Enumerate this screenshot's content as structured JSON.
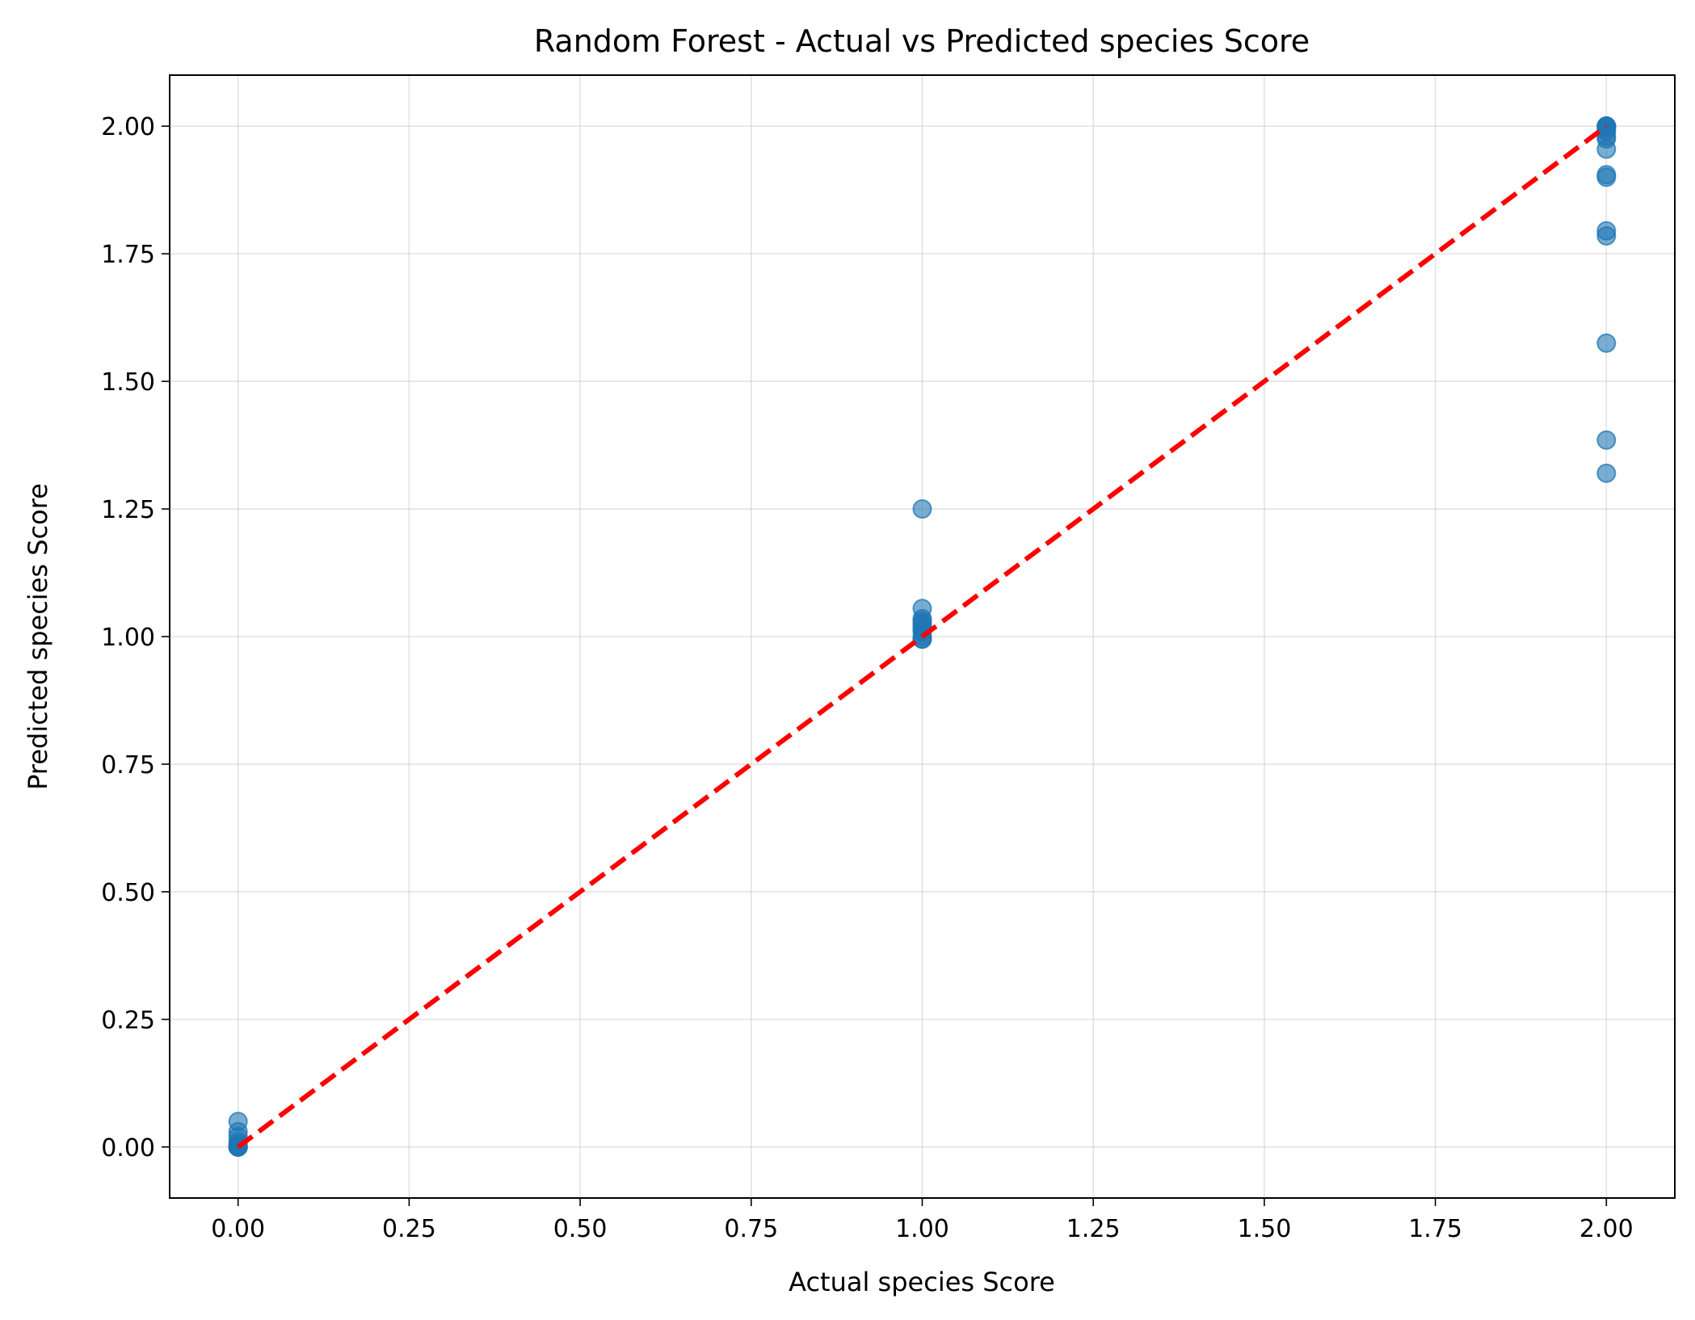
{
  "chart_data": {
    "type": "scatter",
    "title": "Random Forest - Actual vs Predicted species Score",
    "xlabel": "Actual species Score",
    "ylabel": "Predicted species Score",
    "xlim": [
      -0.1,
      2.1
    ],
    "ylim": [
      -0.1,
      2.1
    ],
    "xticks": [
      0.0,
      0.25,
      0.5,
      0.75,
      1.0,
      1.25,
      1.5,
      1.75,
      2.0
    ],
    "yticks": [
      0.0,
      0.25,
      0.5,
      0.75,
      1.0,
      1.25,
      1.5,
      1.75,
      2.0
    ],
    "xtick_labels": [
      "0.00",
      "0.25",
      "0.50",
      "0.75",
      "1.00",
      "1.25",
      "1.50",
      "1.75",
      "2.00"
    ],
    "ytick_labels": [
      "0.00",
      "0.25",
      "0.50",
      "0.75",
      "1.00",
      "1.25",
      "1.50",
      "1.75",
      "2.00"
    ],
    "grid": true,
    "point_color": "#1f77b4",
    "reference_line": {
      "x": [
        0,
        2
      ],
      "y": [
        0,
        2
      ],
      "color": "#ff0000",
      "style": "dashed"
    },
    "points": [
      {
        "x": 0,
        "y": 0.0
      },
      {
        "x": 0,
        "y": 0.0
      },
      {
        "x": 0,
        "y": 0.0
      },
      {
        "x": 0,
        "y": 0.0
      },
      {
        "x": 0,
        "y": 0.0
      },
      {
        "x": 0,
        "y": 0.0
      },
      {
        "x": 0,
        "y": 0.0
      },
      {
        "x": 0,
        "y": 0.005
      },
      {
        "x": 0,
        "y": 0.01
      },
      {
        "x": 0,
        "y": 0.02
      },
      {
        "x": 0,
        "y": 0.03
      },
      {
        "x": 0,
        "y": 0.05
      },
      {
        "x": 1,
        "y": 0.995
      },
      {
        "x": 1,
        "y": 0.995
      },
      {
        "x": 1,
        "y": 1.0
      },
      {
        "x": 1,
        "y": 1.01
      },
      {
        "x": 1,
        "y": 1.015
      },
      {
        "x": 1,
        "y": 1.02
      },
      {
        "x": 1,
        "y": 1.025
      },
      {
        "x": 1,
        "y": 1.03
      },
      {
        "x": 1,
        "y": 1.035
      },
      {
        "x": 1,
        "y": 1.055
      },
      {
        "x": 1,
        "y": 1.25
      },
      {
        "x": 2,
        "y": 2.0
      },
      {
        "x": 2,
        "y": 2.0
      },
      {
        "x": 2,
        "y": 2.0
      },
      {
        "x": 2,
        "y": 2.0
      },
      {
        "x": 2,
        "y": 1.995
      },
      {
        "x": 2,
        "y": 1.99
      },
      {
        "x": 2,
        "y": 1.98
      },
      {
        "x": 2,
        "y": 1.975
      },
      {
        "x": 2,
        "y": 1.955
      },
      {
        "x": 2,
        "y": 1.905
      },
      {
        "x": 2,
        "y": 1.9
      },
      {
        "x": 2,
        "y": 1.795
      },
      {
        "x": 2,
        "y": 1.785
      },
      {
        "x": 2,
        "y": 1.575
      },
      {
        "x": 2,
        "y": 1.385
      },
      {
        "x": 2,
        "y": 1.32
      }
    ]
  }
}
